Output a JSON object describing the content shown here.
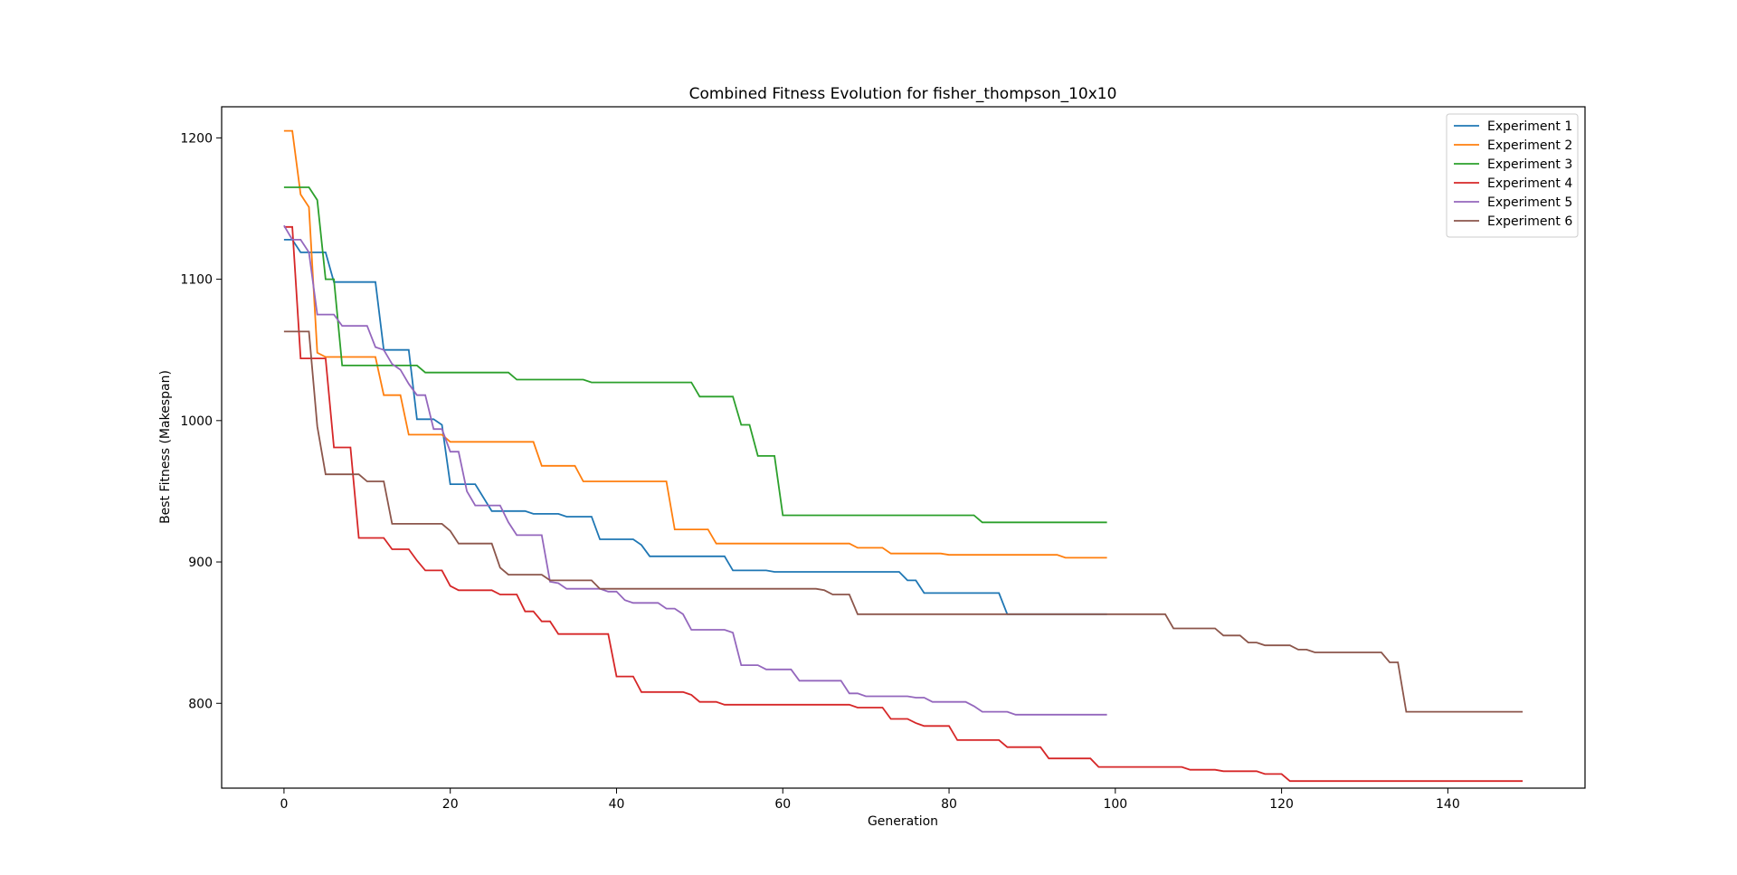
{
  "chart_data": {
    "type": "line",
    "title": "Combined Fitness Evolution for fisher_thompson_10x10",
    "xlabel": "Generation",
    "ylabel": "Best Fitness (Makespan)",
    "xlim": [
      -7.5,
      156.5
    ],
    "ylim": [
      740,
      1222
    ],
    "xticks": [
      0,
      20,
      40,
      60,
      80,
      100,
      120,
      140
    ],
    "yticks": [
      800,
      900,
      1000,
      1100,
      1200
    ],
    "grid": false,
    "legend_position": "top-right",
    "series": [
      {
        "name": "Experiment 1",
        "color": "#1f77b4",
        "points": [
          [
            0,
            1128
          ],
          [
            1,
            1128
          ],
          [
            2,
            1119
          ],
          [
            5,
            1119
          ],
          [
            6,
            1098
          ],
          [
            11,
            1098
          ],
          [
            12,
            1050
          ],
          [
            15,
            1050
          ],
          [
            16,
            1001
          ],
          [
            18,
            1001
          ],
          [
            19,
            997
          ],
          [
            20,
            955
          ],
          [
            23,
            955
          ],
          [
            25,
            936
          ],
          [
            29,
            936
          ],
          [
            30,
            934
          ],
          [
            33,
            934
          ],
          [
            34,
            932
          ],
          [
            37,
            932
          ],
          [
            38,
            916
          ],
          [
            42,
            916
          ],
          [
            43,
            912
          ],
          [
            44,
            904
          ],
          [
            53,
            904
          ],
          [
            54,
            894
          ],
          [
            58,
            894
          ],
          [
            59,
            893
          ],
          [
            74,
            893
          ],
          [
            75,
            887
          ],
          [
            76,
            887
          ],
          [
            77,
            878
          ],
          [
            86,
            878
          ],
          [
            87,
            863
          ],
          [
            99,
            863
          ]
        ]
      },
      {
        "name": "Experiment 2",
        "color": "#ff7f0e",
        "points": [
          [
            0,
            1205
          ],
          [
            1,
            1205
          ],
          [
            2,
            1160
          ],
          [
            3,
            1151
          ],
          [
            4,
            1048
          ],
          [
            5,
            1045
          ],
          [
            11,
            1045
          ],
          [
            12,
            1018
          ],
          [
            14,
            1018
          ],
          [
            15,
            990
          ],
          [
            19,
            990
          ],
          [
            20,
            985
          ],
          [
            30,
            985
          ],
          [
            31,
            968
          ],
          [
            35,
            968
          ],
          [
            36,
            957
          ],
          [
            46,
            957
          ],
          [
            47,
            923
          ],
          [
            51,
            923
          ],
          [
            52,
            913
          ],
          [
            68,
            913
          ],
          [
            69,
            910
          ],
          [
            72,
            910
          ],
          [
            73,
            906
          ],
          [
            79,
            906
          ],
          [
            80,
            905
          ],
          [
            93,
            905
          ],
          [
            94,
            903
          ],
          [
            99,
            903
          ]
        ]
      },
      {
        "name": "Experiment 3",
        "color": "#2ca02c",
        "points": [
          [
            0,
            1165
          ],
          [
            3,
            1165
          ],
          [
            4,
            1156
          ],
          [
            5,
            1100
          ],
          [
            6,
            1100
          ],
          [
            7,
            1039
          ],
          [
            16,
            1039
          ],
          [
            17,
            1034
          ],
          [
            27,
            1034
          ],
          [
            28,
            1029
          ],
          [
            36,
            1029
          ],
          [
            37,
            1027
          ],
          [
            49,
            1027
          ],
          [
            50,
            1017
          ],
          [
            54,
            1017
          ],
          [
            55,
            997
          ],
          [
            56,
            997
          ],
          [
            57,
            975
          ],
          [
            59,
            975
          ],
          [
            60,
            933
          ],
          [
            83,
            933
          ],
          [
            84,
            928
          ],
          [
            99,
            928
          ]
        ]
      },
      {
        "name": "Experiment 4",
        "color": "#d62728",
        "points": [
          [
            0,
            1137
          ],
          [
            1,
            1137
          ],
          [
            2,
            1044
          ],
          [
            5,
            1044
          ],
          [
            6,
            981
          ],
          [
            8,
            981
          ],
          [
            9,
            917
          ],
          [
            12,
            917
          ],
          [
            13,
            909
          ],
          [
            15,
            909
          ],
          [
            16,
            901
          ],
          [
            17,
            894
          ],
          [
            19,
            894
          ],
          [
            20,
            883
          ],
          [
            21,
            880
          ],
          [
            25,
            880
          ],
          [
            26,
            877
          ],
          [
            28,
            877
          ],
          [
            29,
            865
          ],
          [
            30,
            865
          ],
          [
            31,
            858
          ],
          [
            32,
            858
          ],
          [
            33,
            849
          ],
          [
            39,
            849
          ],
          [
            40,
            819
          ],
          [
            42,
            819
          ],
          [
            43,
            808
          ],
          [
            48,
            808
          ],
          [
            49,
            806
          ],
          [
            50,
            801
          ],
          [
            52,
            801
          ],
          [
            53,
            799
          ],
          [
            68,
            799
          ],
          [
            69,
            797
          ],
          [
            72,
            797
          ],
          [
            73,
            789
          ],
          [
            75,
            789
          ],
          [
            76,
            786
          ],
          [
            77,
            784
          ],
          [
            80,
            784
          ],
          [
            81,
            774
          ],
          [
            86,
            774
          ],
          [
            87,
            769
          ],
          [
            91,
            769
          ],
          [
            92,
            761
          ],
          [
            97,
            761
          ],
          [
            98,
            755
          ],
          [
            108,
            755
          ],
          [
            109,
            753
          ],
          [
            112,
            753
          ],
          [
            113,
            752
          ],
          [
            117,
            752
          ],
          [
            118,
            750
          ],
          [
            120,
            750
          ],
          [
            121,
            745
          ],
          [
            149,
            745
          ]
        ]
      },
      {
        "name": "Experiment 5",
        "color": "#9467bd",
        "points": [
          [
            0,
            1138
          ],
          [
            1,
            1128
          ],
          [
            2,
            1128
          ],
          [
            3,
            1119
          ],
          [
            4,
            1075
          ],
          [
            6,
            1075
          ],
          [
            7,
            1067
          ],
          [
            10,
            1067
          ],
          [
            11,
            1052
          ],
          [
            12,
            1050
          ],
          [
            13,
            1040
          ],
          [
            14,
            1036
          ],
          [
            15,
            1026
          ],
          [
            16,
            1018
          ],
          [
            17,
            1018
          ],
          [
            18,
            994
          ],
          [
            19,
            994
          ],
          [
            20,
            978
          ],
          [
            21,
            978
          ],
          [
            22,
            950
          ],
          [
            23,
            940
          ],
          [
            26,
            940
          ],
          [
            27,
            928
          ],
          [
            28,
            919
          ],
          [
            31,
            919
          ],
          [
            32,
            886
          ],
          [
            33,
            885
          ],
          [
            34,
            881
          ],
          [
            38,
            881
          ],
          [
            39,
            879
          ],
          [
            40,
            879
          ],
          [
            41,
            873
          ],
          [
            42,
            871
          ],
          [
            45,
            871
          ],
          [
            46,
            867
          ],
          [
            47,
            867
          ],
          [
            48,
            863
          ],
          [
            49,
            852
          ],
          [
            53,
            852
          ],
          [
            54,
            850
          ],
          [
            55,
            827
          ],
          [
            57,
            827
          ],
          [
            58,
            824
          ],
          [
            61,
            824
          ],
          [
            62,
            816
          ],
          [
            67,
            816
          ],
          [
            68,
            807
          ],
          [
            69,
            807
          ],
          [
            70,
            805
          ],
          [
            75,
            805
          ],
          [
            76,
            804
          ],
          [
            77,
            804
          ],
          [
            78,
            801
          ],
          [
            82,
            801
          ],
          [
            83,
            798
          ],
          [
            84,
            794
          ],
          [
            87,
            794
          ],
          [
            88,
            792
          ],
          [
            99,
            792
          ]
        ]
      },
      {
        "name": "Experiment 6",
        "color": "#8c564b",
        "points": [
          [
            0,
            1063
          ],
          [
            3,
            1063
          ],
          [
            4,
            996
          ],
          [
            5,
            962
          ],
          [
            9,
            962
          ],
          [
            10,
            957
          ],
          [
            12,
            957
          ],
          [
            13,
            927
          ],
          [
            19,
            927
          ],
          [
            20,
            922
          ],
          [
            21,
            913
          ],
          [
            25,
            913
          ],
          [
            26,
            896
          ],
          [
            27,
            891
          ],
          [
            31,
            891
          ],
          [
            32,
            887
          ],
          [
            37,
            887
          ],
          [
            38,
            881
          ],
          [
            64,
            881
          ],
          [
            65,
            880
          ],
          [
            66,
            877
          ],
          [
            68,
            877
          ],
          [
            69,
            863
          ],
          [
            106,
            863
          ],
          [
            107,
            853
          ],
          [
            112,
            853
          ],
          [
            113,
            848
          ],
          [
            115,
            848
          ],
          [
            116,
            843
          ],
          [
            117,
            843
          ],
          [
            118,
            841
          ],
          [
            121,
            841
          ],
          [
            122,
            838
          ],
          [
            123,
            838
          ],
          [
            124,
            836
          ],
          [
            132,
            836
          ],
          [
            133,
            829
          ],
          [
            134,
            829
          ],
          [
            135,
            794
          ],
          [
            149,
            794
          ]
        ]
      }
    ]
  }
}
